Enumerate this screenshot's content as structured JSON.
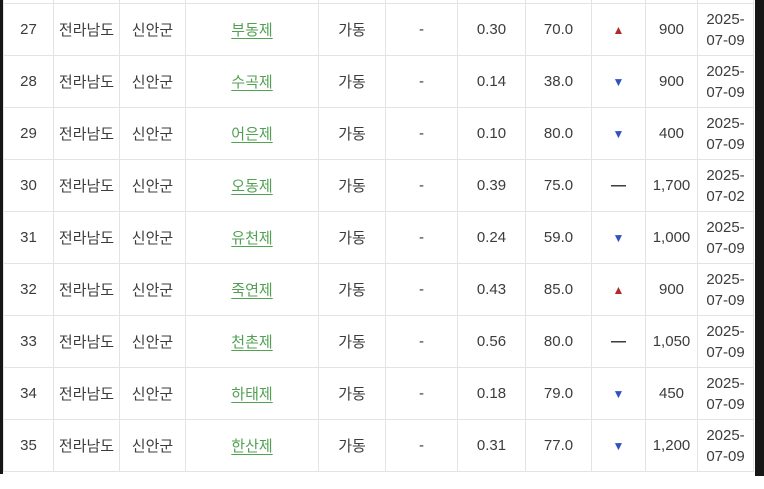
{
  "colors": {
    "link_green": "#52a152",
    "trend_up_red": "#b02a30",
    "trend_down_blue": "#3052c0",
    "trend_flat_dark": "#3a3a3a",
    "cell_text": "#3c3c3c",
    "grid_border": "#e3e3e3",
    "edge_bar": "#161616",
    "background": "#ffffff"
  },
  "trend_symbols": {
    "up": "▲",
    "down": "▼",
    "flat": "—"
  },
  "table": {
    "rows": [
      {
        "no": "27",
        "province": "전라남도",
        "county": "신안군",
        "name": "부동제",
        "status": "가동",
        "dash": "-",
        "rate": "0.30",
        "level": "70.0",
        "trend": "up",
        "amount": "900",
        "date_line1": "2025-",
        "date_line2": "07-09"
      },
      {
        "no": "28",
        "province": "전라남도",
        "county": "신안군",
        "name": "수곡제",
        "status": "가동",
        "dash": "-",
        "rate": "0.14",
        "level": "38.0",
        "trend": "down",
        "amount": "900",
        "date_line1": "2025-",
        "date_line2": "07-09"
      },
      {
        "no": "29",
        "province": "전라남도",
        "county": "신안군",
        "name": "어은제",
        "status": "가동",
        "dash": "-",
        "rate": "0.10",
        "level": "80.0",
        "trend": "down",
        "amount": "400",
        "date_line1": "2025-",
        "date_line2": "07-09"
      },
      {
        "no": "30",
        "province": "전라남도",
        "county": "신안군",
        "name": "오동제",
        "status": "가동",
        "dash": "-",
        "rate": "0.39",
        "level": "75.0",
        "trend": "flat",
        "amount": "1,700",
        "date_line1": "2025-",
        "date_line2": "07-02"
      },
      {
        "no": "31",
        "province": "전라남도",
        "county": "신안군",
        "name": "유천제",
        "status": "가동",
        "dash": "-",
        "rate": "0.24",
        "level": "59.0",
        "trend": "down",
        "amount": "1,000",
        "date_line1": "2025-",
        "date_line2": "07-09"
      },
      {
        "no": "32",
        "province": "전라남도",
        "county": "신안군",
        "name": "죽연제",
        "status": "가동",
        "dash": "-",
        "rate": "0.43",
        "level": "85.0",
        "trend": "up",
        "amount": "900",
        "date_line1": "2025-",
        "date_line2": "07-09"
      },
      {
        "no": "33",
        "province": "전라남도",
        "county": "신안군",
        "name": "천촌제",
        "status": "가동",
        "dash": "-",
        "rate": "0.56",
        "level": "80.0",
        "trend": "flat",
        "amount": "1,050",
        "date_line1": "2025-",
        "date_line2": "07-09"
      },
      {
        "no": "34",
        "province": "전라남도",
        "county": "신안군",
        "name": "하태제",
        "status": "가동",
        "dash": "-",
        "rate": "0.18",
        "level": "79.0",
        "trend": "down",
        "amount": "450",
        "date_line1": "2025-",
        "date_line2": "07-09"
      },
      {
        "no": "35",
        "province": "전라남도",
        "county": "신안군",
        "name": "한산제",
        "status": "가동",
        "dash": "-",
        "rate": "0.31",
        "level": "77.0",
        "trend": "down",
        "amount": "1,200",
        "date_line1": "2025-",
        "date_line2": "07-09"
      }
    ]
  }
}
